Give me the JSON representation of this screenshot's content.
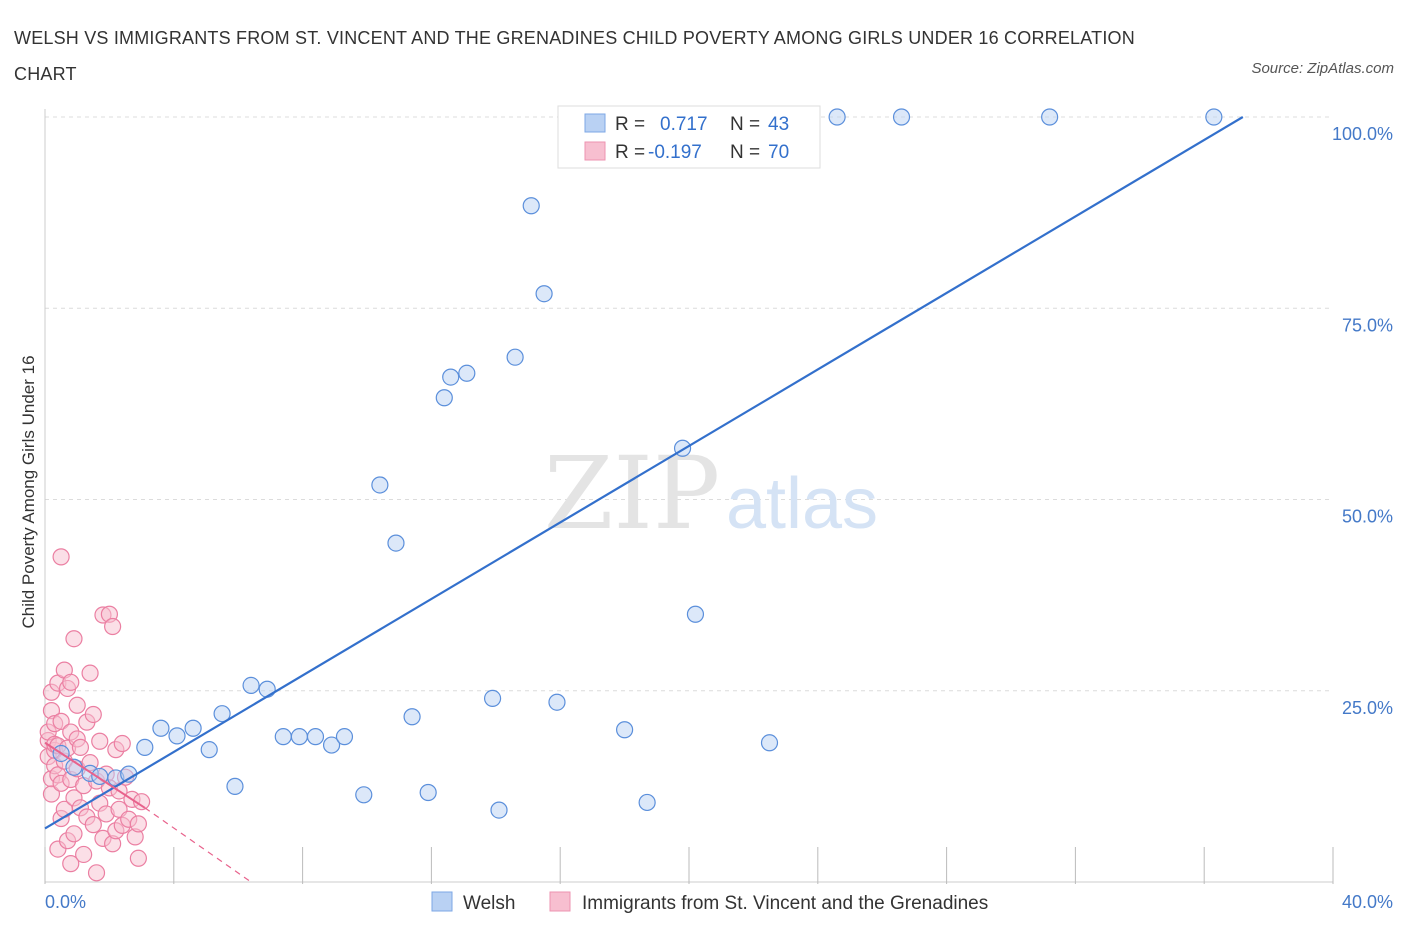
{
  "title": "WELSH VS IMMIGRANTS FROM ST. VINCENT AND THE GRENADINES CHILD POVERTY AMONG GIRLS UNDER 16 CORRELATION CHART",
  "source": "Source: ZipAtlas.com",
  "watermark": {
    "zip": "ZIP",
    "atlas": "atlas"
  },
  "colors": {
    "blue": "#3370cc",
    "blue_fill": "#b9d1f3",
    "pink": "#e8628c",
    "pink_fill": "#f7bfd0",
    "tick_text": "#4479c8"
  },
  "legend_stats": [
    {
      "r_label": "R =",
      "r_value": "0.717",
      "n_label": "N =",
      "n_value": "43"
    },
    {
      "r_label": "R =",
      "r_value": "-0.197",
      "n_label": "N =",
      "n_value": "70"
    }
  ],
  "chart_data": {
    "type": "scatter",
    "title": "WELSH VS IMMIGRANTS FROM ST. VINCENT AND THE GRENADINES CHILD POVERTY AMONG GIRLS UNDER 16 CORRELATION CHART",
    "xlabel": "",
    "ylabel": "Child Poverty Among Girls Under 16",
    "xlim": [
      0,
      40
    ],
    "ylim": [
      0,
      100
    ],
    "x_tick_labels": [
      "0.0%",
      "40.0%"
    ],
    "y_ticks": [
      25,
      50,
      75,
      100
    ],
    "y_tick_labels": [
      "25.0%",
      "50.0%",
      "75.0%",
      "100.0%"
    ],
    "grid": true,
    "legend": "bottom-center",
    "series": [
      {
        "name": "Welsh",
        "color": "#3370cc",
        "r": 0.717,
        "n": 43,
        "trend": {
          "x": [
            0,
            37.2
          ],
          "y": [
            7.0,
            100
          ]
        },
        "points": [
          [
            0.5,
            16.8
          ],
          [
            0.9,
            15.0
          ],
          [
            1.4,
            14.2
          ],
          [
            1.7,
            13.8
          ],
          [
            2.2,
            13.6
          ],
          [
            2.6,
            14.1
          ],
          [
            3.1,
            17.6
          ],
          [
            3.6,
            20.1
          ],
          [
            4.1,
            19.1
          ],
          [
            4.6,
            20.1
          ],
          [
            5.1,
            17.3
          ],
          [
            5.5,
            22.0
          ],
          [
            5.9,
            12.5
          ],
          [
            6.4,
            25.7
          ],
          [
            6.9,
            25.2
          ],
          [
            7.4,
            19.0
          ],
          [
            7.9,
            19.0
          ],
          [
            8.4,
            19.0
          ],
          [
            8.9,
            17.9
          ],
          [
            9.3,
            19.0
          ],
          [
            9.9,
            11.4
          ],
          [
            10.4,
            51.9
          ],
          [
            10.9,
            44.3
          ],
          [
            11.4,
            21.6
          ],
          [
            11.9,
            11.7
          ],
          [
            12.4,
            63.3
          ],
          [
            12.6,
            66.0
          ],
          [
            13.1,
            66.5
          ],
          [
            13.9,
            24.0
          ],
          [
            14.1,
            9.4
          ],
          [
            14.6,
            68.6
          ],
          [
            15.1,
            88.4
          ],
          [
            15.5,
            76.9
          ],
          [
            15.9,
            23.5
          ],
          [
            18.0,
            19.9
          ],
          [
            18.7,
            10.4
          ],
          [
            19.8,
            56.7
          ],
          [
            20.2,
            35.0
          ],
          [
            22.5,
            18.2
          ],
          [
            24.6,
            100
          ],
          [
            26.6,
            100
          ],
          [
            31.2,
            100
          ],
          [
            36.3,
            100
          ]
        ]
      },
      {
        "name": "Immigrants from St. Vincent and the Grenadines",
        "color": "#e8628c",
        "r": -0.197,
        "n": 70,
        "trend_solid": {
          "x": [
            0,
            3.1
          ],
          "y": [
            18.2,
            9.7
          ]
        },
        "trend_dashed": {
          "x": [
            3.1,
            6.4
          ],
          "y": [
            9.7,
            0
          ]
        },
        "points": [
          [
            0.1,
            18.5
          ],
          [
            0.1,
            16.4
          ],
          [
            0.1,
            19.6
          ],
          [
            0.2,
            13.5
          ],
          [
            0.2,
            22.4
          ],
          [
            0.2,
            11.5
          ],
          [
            0.2,
            24.8
          ],
          [
            0.3,
            17.2
          ],
          [
            0.3,
            15.2
          ],
          [
            0.3,
            20.7
          ],
          [
            0.3,
            18.0
          ],
          [
            0.4,
            14.0
          ],
          [
            0.4,
            26.0
          ],
          [
            0.4,
            4.3
          ],
          [
            0.4,
            17.8
          ],
          [
            0.5,
            42.5
          ],
          [
            0.5,
            8.3
          ],
          [
            0.5,
            12.9
          ],
          [
            0.5,
            21.0
          ],
          [
            0.6,
            15.8
          ],
          [
            0.6,
            9.5
          ],
          [
            0.6,
            27.7
          ],
          [
            0.7,
            25.3
          ],
          [
            0.7,
            5.4
          ],
          [
            0.7,
            17.5
          ],
          [
            0.8,
            13.4
          ],
          [
            0.8,
            2.4
          ],
          [
            0.8,
            19.6
          ],
          [
            0.8,
            26.1
          ],
          [
            0.9,
            11.0
          ],
          [
            0.9,
            6.3
          ],
          [
            0.9,
            31.8
          ],
          [
            1.0,
            18.7
          ],
          [
            1.0,
            14.8
          ],
          [
            1.0,
            23.1
          ],
          [
            1.1,
            9.7
          ],
          [
            1.1,
            17.6
          ],
          [
            1.2,
            12.6
          ],
          [
            1.2,
            3.6
          ],
          [
            1.3,
            20.9
          ],
          [
            1.3,
            8.5
          ],
          [
            1.4,
            27.3
          ],
          [
            1.4,
            15.6
          ],
          [
            1.5,
            21.9
          ],
          [
            1.5,
            7.5
          ],
          [
            1.6,
            13.2
          ],
          [
            1.6,
            1.2
          ],
          [
            1.7,
            10.3
          ],
          [
            1.7,
            18.4
          ],
          [
            1.8,
            34.9
          ],
          [
            1.8,
            5.7
          ],
          [
            1.9,
            14.1
          ],
          [
            1.9,
            8.9
          ],
          [
            2.0,
            35.0
          ],
          [
            2.0,
            12.3
          ],
          [
            2.1,
            5.0
          ],
          [
            2.1,
            33.4
          ],
          [
            2.2,
            17.3
          ],
          [
            2.2,
            6.7
          ],
          [
            2.3,
            9.5
          ],
          [
            2.3,
            11.9
          ],
          [
            2.4,
            18.1
          ],
          [
            2.4,
            7.4
          ],
          [
            2.5,
            13.7
          ],
          [
            2.6,
            8.2
          ],
          [
            2.7,
            10.8
          ],
          [
            2.8,
            5.9
          ],
          [
            2.9,
            3.1
          ],
          [
            2.9,
            7.6
          ],
          [
            3.0,
            10.5
          ]
        ]
      }
    ]
  }
}
